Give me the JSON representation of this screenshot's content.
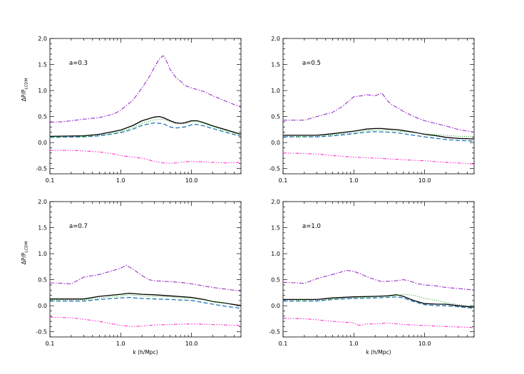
{
  "chart_data": {
    "type": "line",
    "xscale": "log",
    "xlim": [
      0.1,
      50
    ],
    "ylim": [
      -0.6,
      2.0
    ],
    "xticks": [
      {
        "value": 0.1,
        "label": "0.1"
      },
      {
        "value": 1.0,
        "label": "1.0"
      },
      {
        "value": 10.0,
        "label": "10.0"
      }
    ],
    "yticks": [
      {
        "value": -0.5,
        "label": "-0.5"
      },
      {
        "value": 0.0,
        "label": "0.0"
      },
      {
        "value": 0.5,
        "label": "0.5"
      },
      {
        "value": 1.0,
        "label": "1.0"
      },
      {
        "value": 1.5,
        "label": "1.5"
      },
      {
        "value": 2.0,
        "label": "2.0"
      }
    ],
    "xlabel": "k (h/Mpc)",
    "ylabel": "ΔP/P_LCDM",
    "ylabel_main": "ΔP/P",
    "ylabel_sub": "LCDM",
    "series_styles": [
      {
        "color": "#9932cc",
        "dash": "6,2,1.5,2",
        "width": 1.1
      },
      {
        "color": "#000000",
        "dash": "",
        "width": 1.3
      },
      {
        "color": "#1f77b4",
        "dash": "6,3",
        "width": 1.3
      },
      {
        "color": "#2ca02c",
        "dash": "1,2",
        "width": 1.1
      },
      {
        "color": "#ff33cc",
        "dash": "5,2,1.5,2,1.5,2,1.5,2",
        "width": 1.1
      }
    ],
    "panels": [
      {
        "label": "a=0.3",
        "show_ylabel": true,
        "show_xlabel": false,
        "series": [
          {
            "x": [
              0.1,
              0.15,
              0.2,
              0.3,
              0.5,
              0.8,
              1.0,
              1.5,
              2.0,
              2.5,
              3.0,
              3.5,
              4.0,
              4.5,
              5.0,
              6.0,
              7.0,
              8.0,
              10.0,
              15.0,
              20.0,
              30.0,
              50.0
            ],
            "y": [
              0.39,
              0.4,
              0.42,
              0.45,
              0.48,
              0.55,
              0.62,
              0.82,
              1.05,
              1.25,
              1.45,
              1.6,
              1.67,
              1.55,
              1.4,
              1.25,
              1.18,
              1.1,
              1.05,
              0.98,
              0.9,
              0.8,
              0.68
            ]
          },
          {
            "x": [
              0.1,
              0.3,
              0.5,
              1.0,
              1.5,
              2.0,
              3.0,
              3.5,
              4.0,
              5.0,
              6.0,
              7.0,
              8.0,
              10.0,
              12.0,
              15.0,
              20.0,
              30.0,
              50.0
            ],
            "y": [
              0.12,
              0.13,
              0.16,
              0.24,
              0.33,
              0.42,
              0.49,
              0.5,
              0.48,
              0.42,
              0.38,
              0.37,
              0.38,
              0.42,
              0.42,
              0.38,
              0.32,
              0.25,
              0.16
            ]
          },
          {
            "x": [
              0.1,
              0.3,
              0.5,
              1.0,
              1.5,
              2.0,
              3.0,
              4.0,
              5.0,
              6.0,
              8.0,
              10.0,
              12.0,
              15.0,
              20.0,
              30.0,
              50.0
            ],
            "y": [
              0.1,
              0.11,
              0.13,
              0.19,
              0.26,
              0.33,
              0.38,
              0.36,
              0.3,
              0.28,
              0.3,
              0.34,
              0.35,
              0.32,
              0.27,
              0.2,
              0.12
            ]
          },
          {
            "x": [
              0.1,
              0.3,
              0.5,
              1.0,
              1.5,
              2.0,
              3.0,
              4.0,
              5.0,
              6.0,
              8.0,
              10.0,
              12.0,
              15.0,
              20.0,
              30.0,
              50.0
            ],
            "y": [
              0.11,
              0.12,
              0.14,
              0.21,
              0.29,
              0.37,
              0.44,
              0.45,
              0.4,
              0.36,
              0.36,
              0.4,
              0.41,
              0.37,
              0.31,
              0.23,
              0.14
            ]
          },
          {
            "x": [
              0.1,
              0.2,
              0.3,
              0.5,
              0.8,
              1.0,
              2.0,
              3.0,
              4.0,
              5.0,
              6.0,
              8.0,
              10.0,
              15.0,
              20.0,
              30.0,
              50.0
            ],
            "y": [
              -0.15,
              -0.15,
              -0.16,
              -0.18,
              -0.22,
              -0.25,
              -0.3,
              -0.36,
              -0.39,
              -0.4,
              -0.39,
              -0.37,
              -0.36,
              -0.37,
              -0.38,
              -0.39,
              -0.38
            ]
          }
        ]
      },
      {
        "label": "a=0.5",
        "show_ylabel": false,
        "show_xlabel": false,
        "series": [
          {
            "x": [
              0.1,
              0.15,
              0.2,
              0.3,
              0.5,
              0.7,
              1.0,
              1.3,
              1.5,
              2.0,
              2.5,
              3.0,
              3.5,
              4.0,
              5.0,
              7.0,
              10.0,
              15.0,
              20.0,
              30.0,
              50.0
            ],
            "y": [
              0.43,
              0.43,
              0.43,
              0.5,
              0.58,
              0.7,
              0.88,
              0.9,
              0.92,
              0.9,
              0.95,
              0.8,
              0.72,
              0.68,
              0.6,
              0.5,
              0.42,
              0.36,
              0.32,
              0.25,
              0.2
            ]
          },
          {
            "x": [
              0.1,
              0.3,
              0.5,
              1.0,
              1.5,
              2.0,
              2.5,
              3.0,
              4.0,
              5.0,
              7.0,
              10.0,
              15.0,
              20.0,
              30.0,
              50.0
            ],
            "y": [
              0.14,
              0.14,
              0.17,
              0.22,
              0.26,
              0.27,
              0.27,
              0.26,
              0.25,
              0.23,
              0.2,
              0.16,
              0.13,
              0.1,
              0.08,
              0.07
            ]
          },
          {
            "x": [
              0.1,
              0.3,
              0.5,
              1.0,
              1.5,
              2.0,
              3.0,
              4.0,
              5.0,
              7.0,
              10.0,
              15.0,
              20.0,
              30.0,
              50.0
            ],
            "y": [
              0.11,
              0.11,
              0.13,
              0.17,
              0.2,
              0.21,
              0.2,
              0.19,
              0.17,
              0.14,
              0.11,
              0.08,
              0.06,
              0.04,
              0.03
            ]
          },
          {
            "x": [
              0.1,
              0.3,
              0.5,
              1.0,
              1.5,
              2.0,
              3.0,
              4.0,
              5.0,
              7.0,
              10.0,
              15.0,
              20.0,
              30.0,
              50.0
            ],
            "y": [
              0.12,
              0.12,
              0.15,
              0.19,
              0.23,
              0.24,
              0.24,
              0.22,
              0.21,
              0.19,
              0.17,
              0.15,
              0.14,
              0.12,
              0.12
            ]
          },
          {
            "x": [
              0.1,
              0.2,
              0.3,
              0.5,
              1.0,
              2.0,
              3.0,
              5.0,
              10.0,
              20.0,
              50.0
            ],
            "y": [
              -0.2,
              -0.21,
              -0.22,
              -0.25,
              -0.28,
              -0.3,
              -0.31,
              -0.33,
              -0.35,
              -0.38,
              -0.41
            ]
          }
        ]
      },
      {
        "label": "a=0.7",
        "show_ylabel": true,
        "show_xlabel": true,
        "series": [
          {
            "x": [
              0.1,
              0.15,
              0.2,
              0.3,
              0.5,
              0.8,
              1.0,
              1.2,
              1.5,
              2.0,
              2.5,
              3.0,
              4.0,
              5.0,
              7.0,
              10.0,
              15.0,
              20.0,
              30.0,
              50.0
            ],
            "y": [
              0.44,
              0.43,
              0.42,
              0.55,
              0.6,
              0.68,
              0.72,
              0.78,
              0.7,
              0.58,
              0.5,
              0.48,
              0.47,
              0.46,
              0.45,
              0.42,
              0.38,
              0.35,
              0.32,
              0.28
            ]
          },
          {
            "x": [
              0.1,
              0.3,
              0.5,
              1.0,
              1.3,
              2.0,
              3.0,
              5.0,
              10.0,
              15.0,
              20.0,
              30.0,
              50.0
            ],
            "y": [
              0.13,
              0.13,
              0.18,
              0.22,
              0.24,
              0.22,
              0.21,
              0.19,
              0.16,
              0.12,
              0.08,
              0.05,
              0.0
            ]
          },
          {
            "x": [
              0.1,
              0.3,
              0.5,
              1.0,
              1.3,
              2.0,
              3.0,
              5.0,
              10.0,
              15.0,
              20.0,
              30.0,
              50.0
            ],
            "y": [
              0.09,
              0.09,
              0.12,
              0.15,
              0.16,
              0.14,
              0.13,
              0.12,
              0.1,
              0.06,
              0.03,
              -0.01,
              -0.05
            ]
          },
          {
            "x": [
              0.1,
              0.3,
              0.5,
              1.0,
              1.3,
              2.0,
              3.0,
              5.0,
              10.0,
              15.0,
              20.0,
              30.0,
              50.0
            ],
            "y": [
              0.11,
              0.11,
              0.15,
              0.19,
              0.21,
              0.19,
              0.18,
              0.17,
              0.14,
              0.11,
              0.08,
              0.05,
              0.02
            ]
          },
          {
            "x": [
              0.1,
              0.2,
              0.3,
              0.5,
              1.0,
              1.5,
              2.0,
              3.0,
              5.0,
              10.0,
              20.0,
              50.0
            ],
            "y": [
              -0.22,
              -0.23,
              -0.26,
              -0.3,
              -0.38,
              -0.4,
              -0.39,
              -0.37,
              -0.36,
              -0.35,
              -0.36,
              -0.38
            ]
          }
        ]
      },
      {
        "label": "a=1.0",
        "show_ylabel": false,
        "show_xlabel": true,
        "series": [
          {
            "x": [
              0.1,
              0.15,
              0.2,
              0.3,
              0.5,
              0.8,
              1.0,
              1.3,
              1.5,
              2.0,
              2.5,
              3.0,
              4.0,
              5.0,
              6.0,
              8.0,
              10.0,
              15.0,
              20.0,
              30.0,
              50.0
            ],
            "y": [
              0.45,
              0.44,
              0.43,
              0.52,
              0.6,
              0.68,
              0.66,
              0.6,
              0.56,
              0.5,
              0.46,
              0.47,
              0.48,
              0.5,
              0.48,
              0.42,
              0.4,
              0.38,
              0.35,
              0.33,
              0.3
            ]
          },
          {
            "x": [
              0.1,
              0.3,
              0.5,
              1.0,
              2.0,
              3.0,
              4.0,
              5.0,
              7.0,
              10.0,
              15.0,
              20.0,
              30.0,
              50.0
            ],
            "y": [
              0.12,
              0.12,
              0.15,
              0.17,
              0.18,
              0.19,
              0.21,
              0.18,
              0.1,
              0.04,
              0.03,
              0.03,
              0.0,
              -0.03
            ]
          },
          {
            "x": [
              0.1,
              0.3,
              0.5,
              1.0,
              2.0,
              3.0,
              4.0,
              5.0,
              7.0,
              10.0,
              15.0,
              20.0,
              30.0,
              50.0
            ],
            "y": [
              0.09,
              0.09,
              0.12,
              0.14,
              0.15,
              0.16,
              0.17,
              0.15,
              0.08,
              0.02,
              0.0,
              0.0,
              -0.02,
              -0.05
            ]
          },
          {
            "x": [
              0.1,
              0.3,
              0.5,
              1.0,
              2.0,
              3.0,
              4.0,
              5.0,
              7.0,
              10.0,
              15.0,
              20.0,
              30.0,
              50.0
            ],
            "y": [
              0.1,
              0.1,
              0.13,
              0.15,
              0.17,
              0.18,
              0.2,
              0.22,
              0.2,
              0.14,
              0.1,
              0.06,
              0.02,
              -0.02
            ]
          },
          {
            "x": [
              0.1,
              0.2,
              0.3,
              0.5,
              1.0,
              1.2,
              1.5,
              2.0,
              3.0,
              5.0,
              10.0,
              20.0,
              50.0
            ],
            "y": [
              -0.24,
              -0.25,
              -0.27,
              -0.3,
              -0.33,
              -0.38,
              -0.35,
              -0.35,
              -0.33,
              -0.36,
              -0.38,
              -0.4,
              -0.42
            ]
          }
        ]
      }
    ]
  }
}
